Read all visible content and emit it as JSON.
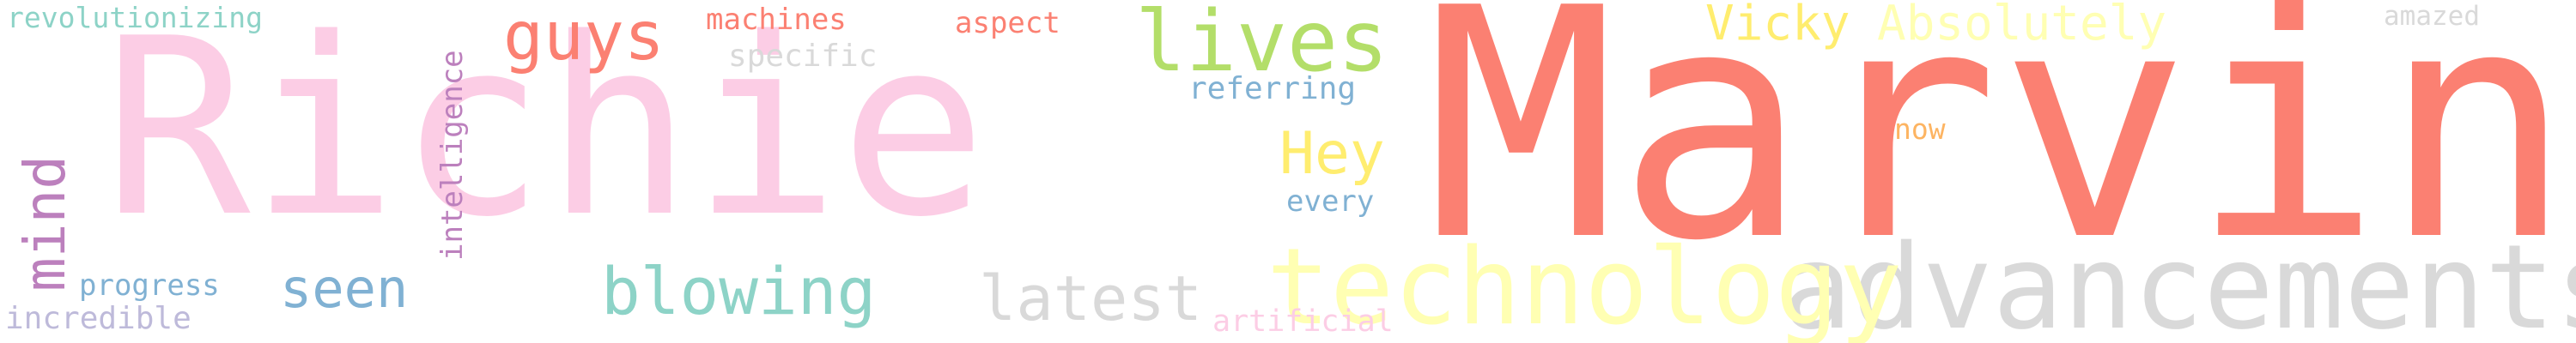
{
  "cloud": {
    "words": [
      {
        "id": "marvin",
        "text": "Marvin",
        "color": "#fb8072"
      },
      {
        "id": "richie",
        "text": "Richie",
        "color": "#fccde5"
      },
      {
        "id": "advancements",
        "text": "advancements",
        "color": "#d9d9d9"
      },
      {
        "id": "technology",
        "text": "technology",
        "color": "#ffffb3"
      },
      {
        "id": "lives",
        "text": "lives",
        "color": "#b3de69"
      },
      {
        "id": "guys",
        "text": "guys",
        "color": "#fb8072"
      },
      {
        "id": "blowing",
        "text": "blowing",
        "color": "#8dd3c7"
      },
      {
        "id": "latest",
        "text": "latest",
        "color": "#d9d9d9"
      },
      {
        "id": "seen",
        "text": "seen",
        "color": "#80b1d3"
      },
      {
        "id": "mind",
        "text": "mind",
        "color": "#bc80bd"
      },
      {
        "id": "hey",
        "text": "Hey",
        "color": "#ffed6f"
      },
      {
        "id": "vicky",
        "text": "Vicky",
        "color": "#ffed6f"
      },
      {
        "id": "absolutely",
        "text": "Absolutely",
        "color": "#ffffb3"
      },
      {
        "id": "revolutionizing",
        "text": "revolutionizing",
        "color": "#8dd3c7"
      },
      {
        "id": "machines",
        "text": "machines",
        "color": "#fb8072"
      },
      {
        "id": "aspect",
        "text": "aspect",
        "color": "#fb8072"
      },
      {
        "id": "specific",
        "text": "specific",
        "color": "#d9d9d9"
      },
      {
        "id": "referring",
        "text": "referring",
        "color": "#80b1d3"
      },
      {
        "id": "amazed",
        "text": "amazed",
        "color": "#d9d9d9"
      },
      {
        "id": "intelligence",
        "text": "intelligence",
        "color": "#bc80bd"
      },
      {
        "id": "progress",
        "text": "progress",
        "color": "#80b1d3"
      },
      {
        "id": "incredible",
        "text": "incredible",
        "color": "#bebada"
      },
      {
        "id": "artificial",
        "text": "artificial",
        "color": "#fccde5"
      },
      {
        "id": "now",
        "text": "now",
        "color": "#fdb462"
      },
      {
        "id": "every",
        "text": "every",
        "color": "#80b1d3"
      }
    ]
  }
}
